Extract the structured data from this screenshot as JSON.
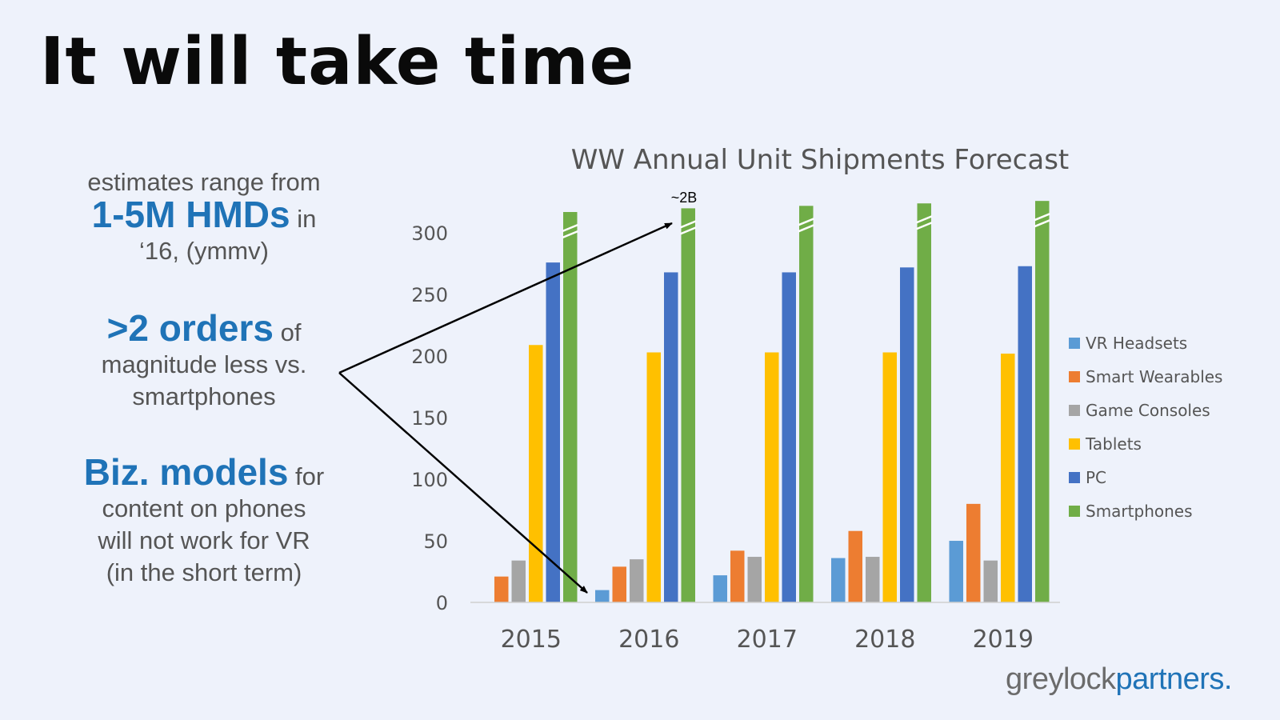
{
  "slide": {
    "title": "It will take time",
    "points": [
      {
        "pre": "estimates range from",
        "highlight": "1-5M HMDs",
        "suffix": " in",
        "rest": "‘16, (ymmv)"
      },
      {
        "pre": "",
        "highlight": ">2 orders",
        "suffix": " of",
        "rest": "magnitude less vs. smartphones"
      },
      {
        "pre": "",
        "highlight": "Biz. models",
        "suffix": " for",
        "rest": "content on phones will not work for VR (in the short term)"
      }
    ],
    "annotation": "~2B",
    "brand": {
      "part1": "greylock",
      "part2": "partners."
    }
  },
  "chart_data": {
    "type": "bar",
    "title": "WW Annual Unit Shipments Forecast",
    "categories": [
      "2015",
      "2016",
      "2017",
      "2018",
      "2019"
    ],
    "ylim": [
      0,
      330
    ],
    "yticks": [
      0,
      50,
      100,
      150,
      200,
      250,
      300
    ],
    "grid": false,
    "legend_position": "right",
    "axis_break_series": "Smartphones",
    "series": [
      {
        "name": "VR Headsets",
        "color": "#5b9bd5",
        "values": [
          0,
          10,
          22,
          36,
          50
        ]
      },
      {
        "name": "Smart Wearables",
        "color": "#ed7d31",
        "values": [
          21,
          29,
          42,
          58,
          80
        ]
      },
      {
        "name": "Game Consoles",
        "color": "#a5a5a5",
        "values": [
          34,
          35,
          37,
          37,
          34
        ]
      },
      {
        "name": "Tablets",
        "color": "#ffc000",
        "values": [
          209,
          203,
          203,
          203,
          202
        ]
      },
      {
        "name": "PC",
        "color": "#4472c4",
        "values": [
          276,
          268,
          268,
          272,
          273
        ]
      },
      {
        "name": "Smartphones",
        "color": "#70ad47",
        "values": [
          317,
          320,
          322,
          324,
          326
        ]
      }
    ]
  }
}
